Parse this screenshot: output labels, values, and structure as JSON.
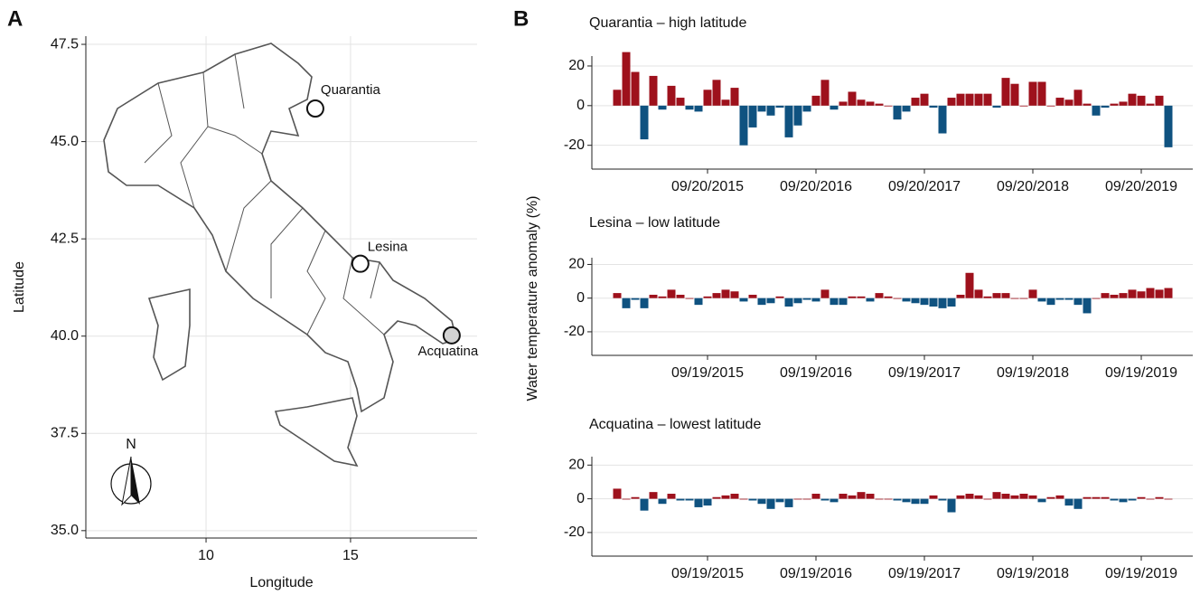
{
  "chart_data": [
    {
      "type": "scatter",
      "panel_label": "A",
      "xlabel": "Longitude",
      "ylabel": "Latitude",
      "xlim": [
        5.84,
        19.38
      ],
      "ylim": [
        34.81,
        47.71
      ],
      "xticks": [
        10,
        15
      ],
      "yticks": [
        {
          "value": 35,
          "label": "35.0"
        },
        {
          "value": 37.5,
          "label": "37.5"
        },
        {
          "value": 40,
          "label": "40.0"
        },
        {
          "value": 42.5,
          "label": "42.5"
        },
        {
          "value": 45,
          "label": "45.0"
        },
        {
          "value": 47.5,
          "label": "47.5"
        }
      ],
      "grid": true,
      "compass_label": "N",
      "labels": [
        "Quarantia",
        "Lesina",
        "Acquatina"
      ],
      "x": [
        13.78,
        15.34,
        18.5
      ],
      "y": [
        45.85,
        41.86,
        40.02
      ],
      "colors": [
        "#ffffff",
        "#ffffff",
        "#d3d3d3"
      ]
    },
    {
      "type": "bar",
      "panel_label": "B",
      "ylabel": "Water temperature anomaly (%)",
      "title": "Quarantia – high latitude",
      "values": [
        8,
        27,
        17,
        -17,
        15,
        -2,
        10,
        4,
        -2,
        -3,
        8,
        13,
        3,
        9,
        -20,
        -11,
        -3,
        -5,
        -1,
        -16,
        -10,
        -3,
        5,
        13,
        -2,
        2,
        7,
        3,
        2,
        1,
        0,
        -7,
        -3,
        4,
        6,
        -1,
        -14,
        4,
        6,
        6,
        6,
        6,
        -1,
        14,
        11,
        0,
        12,
        12,
        0,
        4,
        3,
        8,
        1,
        -5,
        -1,
        1,
        2,
        6,
        5,
        1,
        5,
        -21
      ],
      "positive_color": "#9e111c",
      "negative_color": "#0f5280",
      "ylim": [
        -32,
        25
      ],
      "yticks": [
        -20,
        0,
        20
      ],
      "grid": true,
      "xticks": [
        {
          "value": 10,
          "label": "09/20/2015"
        },
        {
          "value": 22,
          "label": "09/20/2016"
        },
        {
          "value": 34,
          "label": "09/20/2017"
        },
        {
          "value": 46,
          "label": "09/20/2018"
        },
        {
          "value": 58,
          "label": "09/20/2019"
        }
      ]
    },
    {
      "type": "bar",
      "title": "Lesina – low latitude",
      "values": [
        3,
        -6,
        -1,
        -6,
        2,
        1,
        5,
        2,
        0,
        -4,
        1,
        3,
        5,
        4,
        -2,
        2,
        -4,
        -3,
        1,
        -5,
        -3,
        -1,
        -2,
        5,
        -4,
        -4,
        1,
        1,
        -2,
        3,
        1,
        0,
        -2,
        -3,
        -4,
        -5,
        -6,
        -5,
        2,
        15,
        5,
        1,
        3,
        3,
        0,
        0,
        5,
        -2,
        -4,
        -1,
        -1,
        -4,
        -9,
        0,
        3,
        2,
        3,
        5,
        4,
        6,
        5,
        6
      ],
      "positive_color": "#9e111c",
      "negative_color": "#0f5280",
      "ylim": [
        -34,
        24
      ],
      "yticks": [
        -20,
        0,
        20
      ],
      "grid": true,
      "xticks": [
        {
          "value": 10,
          "label": "09/19/2015"
        },
        {
          "value": 22,
          "label": "09/19/2016"
        },
        {
          "value": 34,
          "label": "09/19/2017"
        },
        {
          "value": 46,
          "label": "09/19/2018"
        },
        {
          "value": 58,
          "label": "09/19/2019"
        }
      ]
    },
    {
      "type": "bar",
      "title": "Acquatina – lowest latitude",
      "values": [
        6,
        0,
        1,
        -7,
        4,
        -3,
        3,
        -1,
        -1,
        -5,
        -4,
        1,
        2,
        3,
        0,
        -1,
        -3,
        -6,
        -2,
        -5,
        0,
        0,
        3,
        -1,
        -2,
        3,
        2,
        4,
        3,
        0,
        0,
        -1,
        -2,
        -3,
        -3,
        2,
        -1,
        -8,
        2,
        3,
        2,
        0,
        4,
        3,
        2,
        3,
        2,
        -2,
        1,
        2,
        -4,
        -6,
        1,
        1,
        1,
        -1,
        -2,
        -1,
        1,
        0,
        1,
        0
      ],
      "positive_color": "#9e111c",
      "negative_color": "#0f5280",
      "ylim": [
        -34,
        25
      ],
      "yticks": [
        -20,
        0,
        20
      ],
      "grid": true,
      "xticks": [
        {
          "value": 10,
          "label": "09/19/2015"
        },
        {
          "value": 22,
          "label": "09/19/2016"
        },
        {
          "value": 34,
          "label": "09/19/2017"
        },
        {
          "value": 46,
          "label": "09/19/2018"
        },
        {
          "value": 58,
          "label": "09/19/2019"
        }
      ]
    }
  ]
}
